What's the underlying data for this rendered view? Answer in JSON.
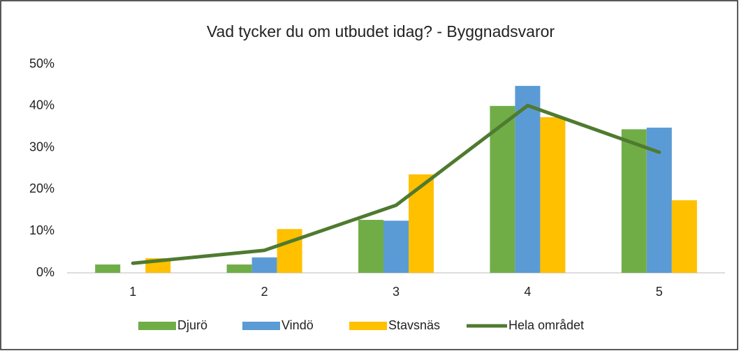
{
  "chart_data": {
    "type": "bar",
    "title": "Vad tycker du om utbudet idag? - Byggnadsvaror",
    "categories": [
      "1",
      "2",
      "3",
      "4",
      "5"
    ],
    "series": [
      {
        "name": "Djurö",
        "type": "bar",
        "color": "#70ad47",
        "values": [
          2.0,
          2.0,
          12.7,
          40.0,
          34.4
        ]
      },
      {
        "name": "Vindö",
        "type": "bar",
        "color": "#5b9bd5",
        "values": [
          0,
          3.7,
          12.5,
          44.8,
          34.8
        ]
      },
      {
        "name": "Stavsnäs",
        "type": "bar",
        "color": "#ffc000",
        "values": [
          3.5,
          10.5,
          23.6,
          37.3,
          17.4
        ]
      },
      {
        "name": "Hela området",
        "type": "line",
        "color": "#4f7a30",
        "values": [
          2.3,
          5.4,
          16.2,
          40.1,
          28.9
        ]
      }
    ],
    "ylim": [
      0,
      50
    ],
    "yticks": [
      {
        "value": 0,
        "label": "0%"
      },
      {
        "value": 10,
        "label": "10%"
      },
      {
        "value": 20,
        "label": "20%"
      },
      {
        "value": 30,
        "label": "30%"
      },
      {
        "value": 40,
        "label": "40%"
      },
      {
        "value": 50,
        "label": "50%"
      }
    ],
    "grid": false,
    "legend": "bottom"
  }
}
